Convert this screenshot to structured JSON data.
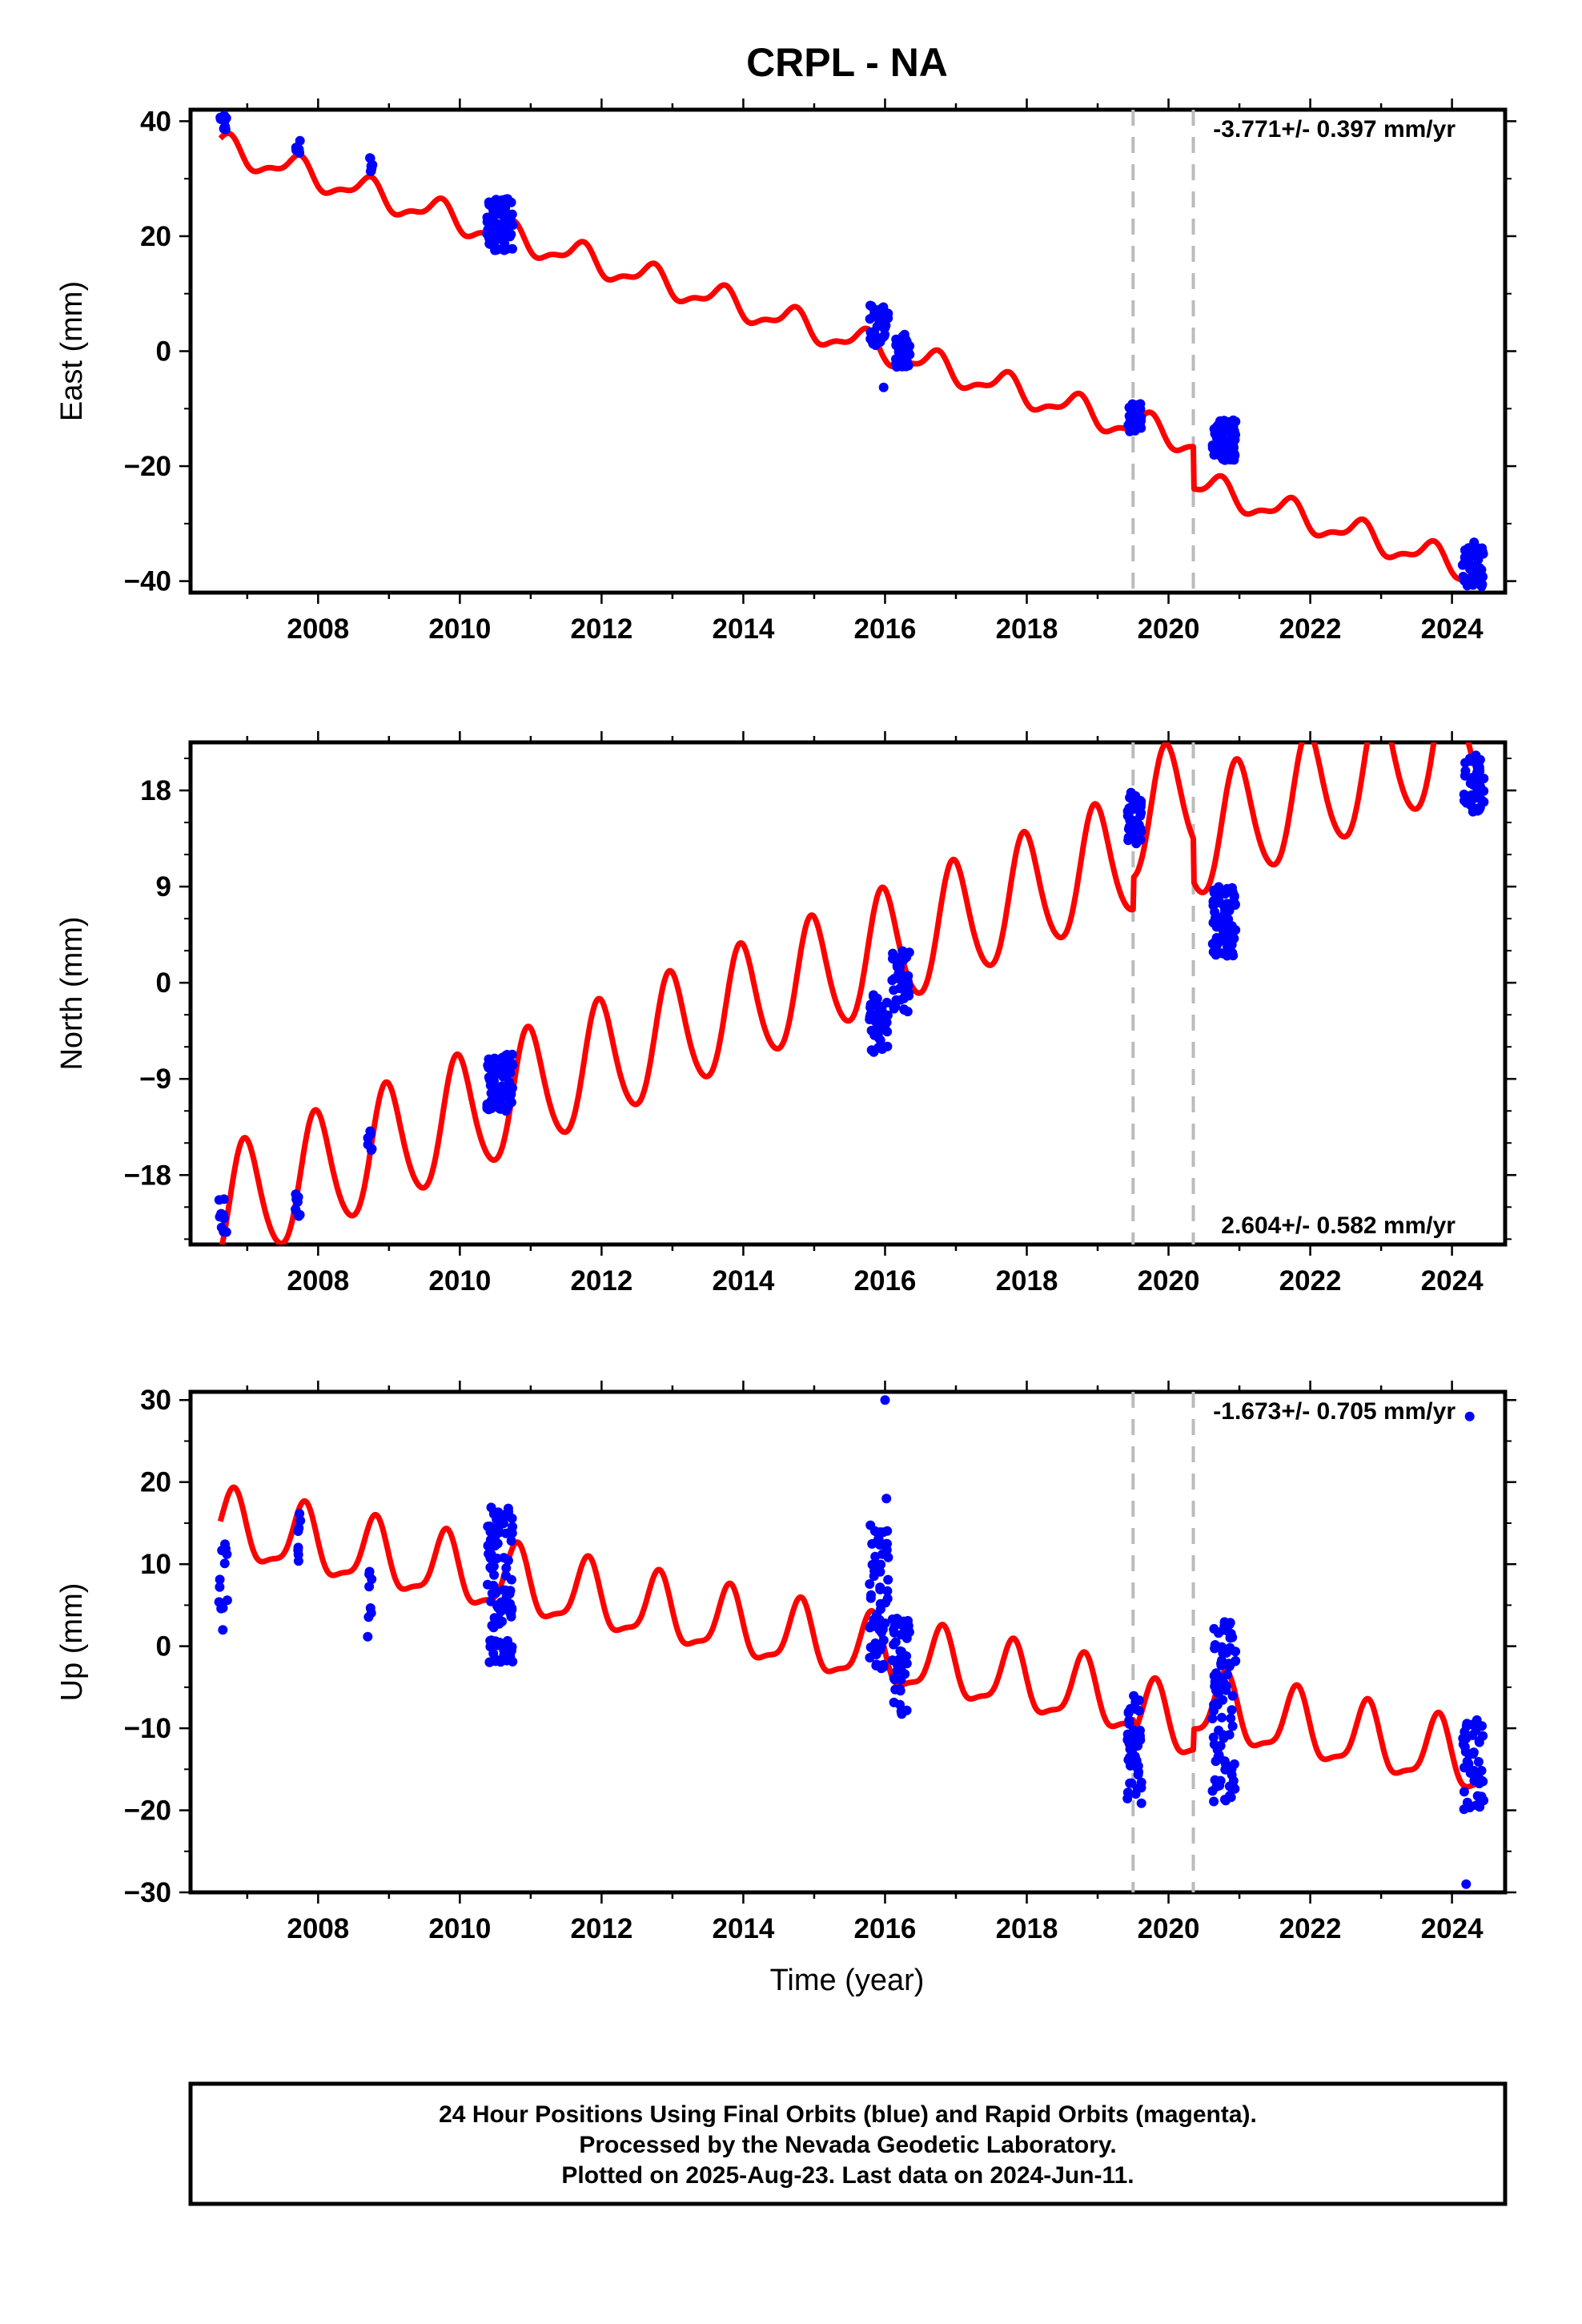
{
  "title": "CRPL - NA",
  "xlabel": "Time (year)",
  "footer": {
    "line1": "24 Hour Positions Using Final Orbits (blue) and Rapid Orbits (magenta).",
    "line2": "Processed by the Nevada Geodetic Laboratory.",
    "line3": "Plotted on 2025-Aug-23. Last data on 2024-Jun-11."
  },
  "colors": {
    "data": "#0000ff",
    "model": "#ff0000",
    "steps": "#bbbbbb"
  },
  "chart_data": [
    {
      "type": "scatter",
      "component": "east",
      "ylabel": "East (mm)",
      "rate_text": "-3.771+/- 0.397 mm/yr",
      "rate_position": "top-right",
      "xlim": [
        2006.2,
        2024.75
      ],
      "ylim": [
        -42,
        42
      ],
      "xticks": [
        "2008",
        "2010",
        "2012",
        "2014",
        "2016",
        "2018",
        "2020",
        "2022",
        "2024"
      ],
      "yticks": [
        "40",
        "20",
        "0",
        "-20",
        "-40"
      ],
      "steps": [
        2019.5,
        2020.35
      ],
      "model": {
        "rate": -3.771,
        "offset_2015": 3.8,
        "annual_amp": 2.2,
        "annual_phase": 0.45,
        "semiannual_amp": 0.9,
        "semiannual_phase": 0.15,
        "step_offsets": [
          0.5,
          -7.3
        ]
      },
      "clusters": [
        {
          "start": 2006.6,
          "end": 2006.72,
          "ymin": 38,
          "ymax": 41,
          "n": 10
        },
        {
          "start": 2007.68,
          "end": 2007.75,
          "ymin": 34,
          "ymax": 37,
          "n": 8
        },
        {
          "start": 2008.7,
          "end": 2008.77,
          "ymin": 31,
          "ymax": 34,
          "n": 8
        },
        {
          "start": 2010.38,
          "end": 2010.75,
          "ymin": 17.5,
          "ymax": 26.5,
          "n": 90
        },
        {
          "start": 2015.78,
          "end": 2016.05,
          "ymin": 1,
          "ymax": 8,
          "n": 45
        },
        {
          "start": 2016.15,
          "end": 2016.35,
          "ymin": -3,
          "ymax": 3,
          "n": 40
        },
        {
          "start": 2019.42,
          "end": 2019.62,
          "ymin": -14,
          "ymax": -9,
          "n": 35
        },
        {
          "start": 2020.62,
          "end": 2020.95,
          "ymin": -19,
          "ymax": -12,
          "n": 80
        },
        {
          "start": 2024.15,
          "end": 2024.45,
          "ymin": -41,
          "ymax": -33,
          "n": 45
        }
      ],
      "outliers": [
        [
          2015.98,
          -6.3
        ]
      ]
    },
    {
      "type": "scatter",
      "component": "north",
      "ylabel": "North (mm)",
      "rate_text": "2.604+/- 0.582 mm/yr",
      "rate_position": "bottom-right",
      "xlim": [
        2006.2,
        2024.75
      ],
      "ylim": [
        -24.5,
        22.5
      ],
      "xticks": [
        "2008",
        "2010",
        "2012",
        "2014",
        "2016",
        "2018",
        "2020",
        "2022",
        "2024"
      ],
      "yticks": [
        "18",
        "9",
        "0",
        "-9",
        "-18"
      ],
      "steps": [
        2019.5,
        2020.35
      ],
      "model": {
        "rate": 2.604,
        "offset_2015": 0.3,
        "annual_amp": 5.6,
        "annual_phase": 0.72,
        "semiannual_amp": 0.6,
        "semiannual_phase": 0.3,
        "step_offsets": [
          3.0,
          -4.0
        ]
      },
      "clusters": [
        {
          "start": 2006.6,
          "end": 2006.72,
          "ymin": -24,
          "ymax": -20,
          "n": 10
        },
        {
          "start": 2007.68,
          "end": 2007.75,
          "ymin": -22,
          "ymax": -19.5,
          "n": 8
        },
        {
          "start": 2008.7,
          "end": 2008.77,
          "ymin": -16,
          "ymax": -13.5,
          "n": 6
        },
        {
          "start": 2010.38,
          "end": 2010.75,
          "ymin": -12,
          "ymax": -6.5,
          "n": 80
        },
        {
          "start": 2015.78,
          "end": 2016.05,
          "ymin": -6.5,
          "ymax": -1,
          "n": 45
        },
        {
          "start": 2016.1,
          "end": 2016.35,
          "ymin": -3,
          "ymax": 3.2,
          "n": 40
        },
        {
          "start": 2019.42,
          "end": 2019.62,
          "ymin": 13,
          "ymax": 18,
          "n": 35
        },
        {
          "start": 2020.62,
          "end": 2020.95,
          "ymin": 2.5,
          "ymax": 9,
          "n": 80
        },
        {
          "start": 2024.15,
          "end": 2024.45,
          "ymin": 16,
          "ymax": 21.5,
          "n": 45
        }
      ],
      "outliers": []
    },
    {
      "type": "scatter",
      "component": "up",
      "ylabel": "Up (mm)",
      "rate_text": "-1.673+/- 0.705 mm/yr",
      "rate_position": "top-right",
      "xlim": [
        2006.2,
        2024.75
      ],
      "ylim": [
        -30,
        31
      ],
      "xticks": [
        "2008",
        "2010",
        "2012",
        "2014",
        "2016",
        "2018",
        "2020",
        "2022",
        "2024"
      ],
      "yticks": [
        "30",
        "20",
        "10",
        "0",
        "-10",
        "-20",
        "-30"
      ],
      "steps": [
        2019.5,
        2020.35
      ],
      "model": {
        "rate": -1.673,
        "offset_2015": 0.5,
        "annual_amp": 4.0,
        "annual_phase": 0.55,
        "semiannual_amp": 1.2,
        "semiannual_phase": 0.2,
        "step_offsets": [
          -1.5,
          2.5
        ]
      },
      "clusters": [
        {
          "start": 2006.6,
          "end": 2006.72,
          "ymin": 1,
          "ymax": 15,
          "n": 12
        },
        {
          "start": 2007.68,
          "end": 2007.75,
          "ymin": 8,
          "ymax": 17,
          "n": 8
        },
        {
          "start": 2008.7,
          "end": 2008.77,
          "ymin": 1,
          "ymax": 10,
          "n": 8
        },
        {
          "start": 2010.38,
          "end": 2010.75,
          "ymin": -2,
          "ymax": 17,
          "n": 110
        },
        {
          "start": 2015.78,
          "end": 2016.05,
          "ymin": -3,
          "ymax": 15,
          "n": 60
        },
        {
          "start": 2016.1,
          "end": 2016.35,
          "ymin": -8.5,
          "ymax": 5,
          "n": 45
        },
        {
          "start": 2019.42,
          "end": 2019.62,
          "ymin": -20.5,
          "ymax": -6,
          "n": 45
        },
        {
          "start": 2020.62,
          "end": 2020.95,
          "ymin": -19,
          "ymax": 3,
          "n": 90
        },
        {
          "start": 2024.15,
          "end": 2024.45,
          "ymin": -20,
          "ymax": -9,
          "n": 45
        }
      ],
      "outliers": [
        [
          2016.0,
          30
        ],
        [
          2016.02,
          18
        ],
        [
          2024.25,
          28
        ],
        [
          2024.2,
          -29
        ]
      ]
    }
  ]
}
